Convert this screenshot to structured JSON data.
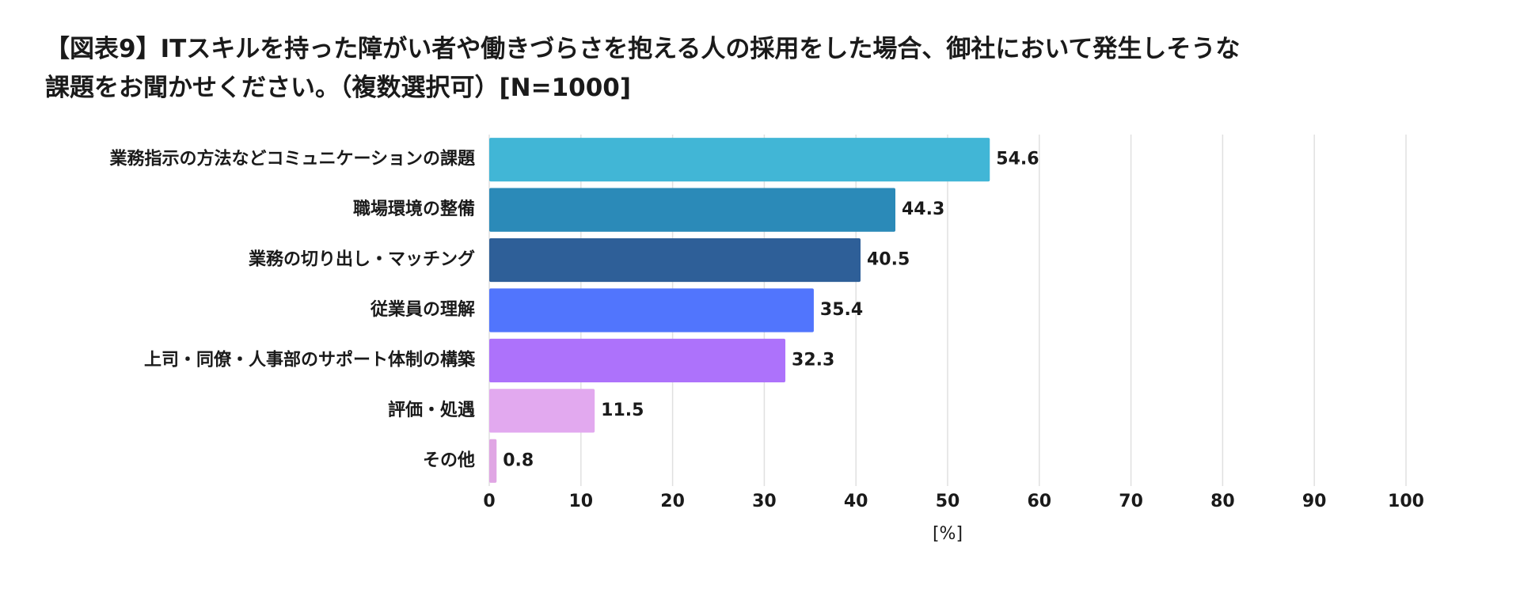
{
  "chart_data": {
    "type": "hbar",
    "title": [
      "【図表9】ITスキルを持った障がい者や働きづらさを抱える人の採用をした場合、御社において発生しそうな",
      "課題をお聞かせください。（複数選択可）[N=1000]"
    ],
    "categories": [
      "業務指示の方法などコミュニケーションの課題",
      "職場環境の整備",
      "業務の切り出し・マッチング",
      "従業員の理解",
      "上司・同僚・人事部のサポート体制の構築",
      "評価・処遇",
      "その他"
    ],
    "values": [
      54.6,
      44.3,
      40.5,
      35.4,
      32.3,
      11.5,
      0.8
    ],
    "colors": [
      "#41b6d6",
      "#2b8ab8",
      "#2e5f98",
      "#5175fd",
      "#ad72fb",
      "#e2a9ef",
      "#e0a6e4"
    ],
    "xlim": [
      0,
      100
    ],
    "xticks": [
      0,
      10,
      20,
      30,
      40,
      50,
      60,
      70,
      80,
      90,
      100
    ],
    "xlabel": "[%]",
    "grid": true
  }
}
